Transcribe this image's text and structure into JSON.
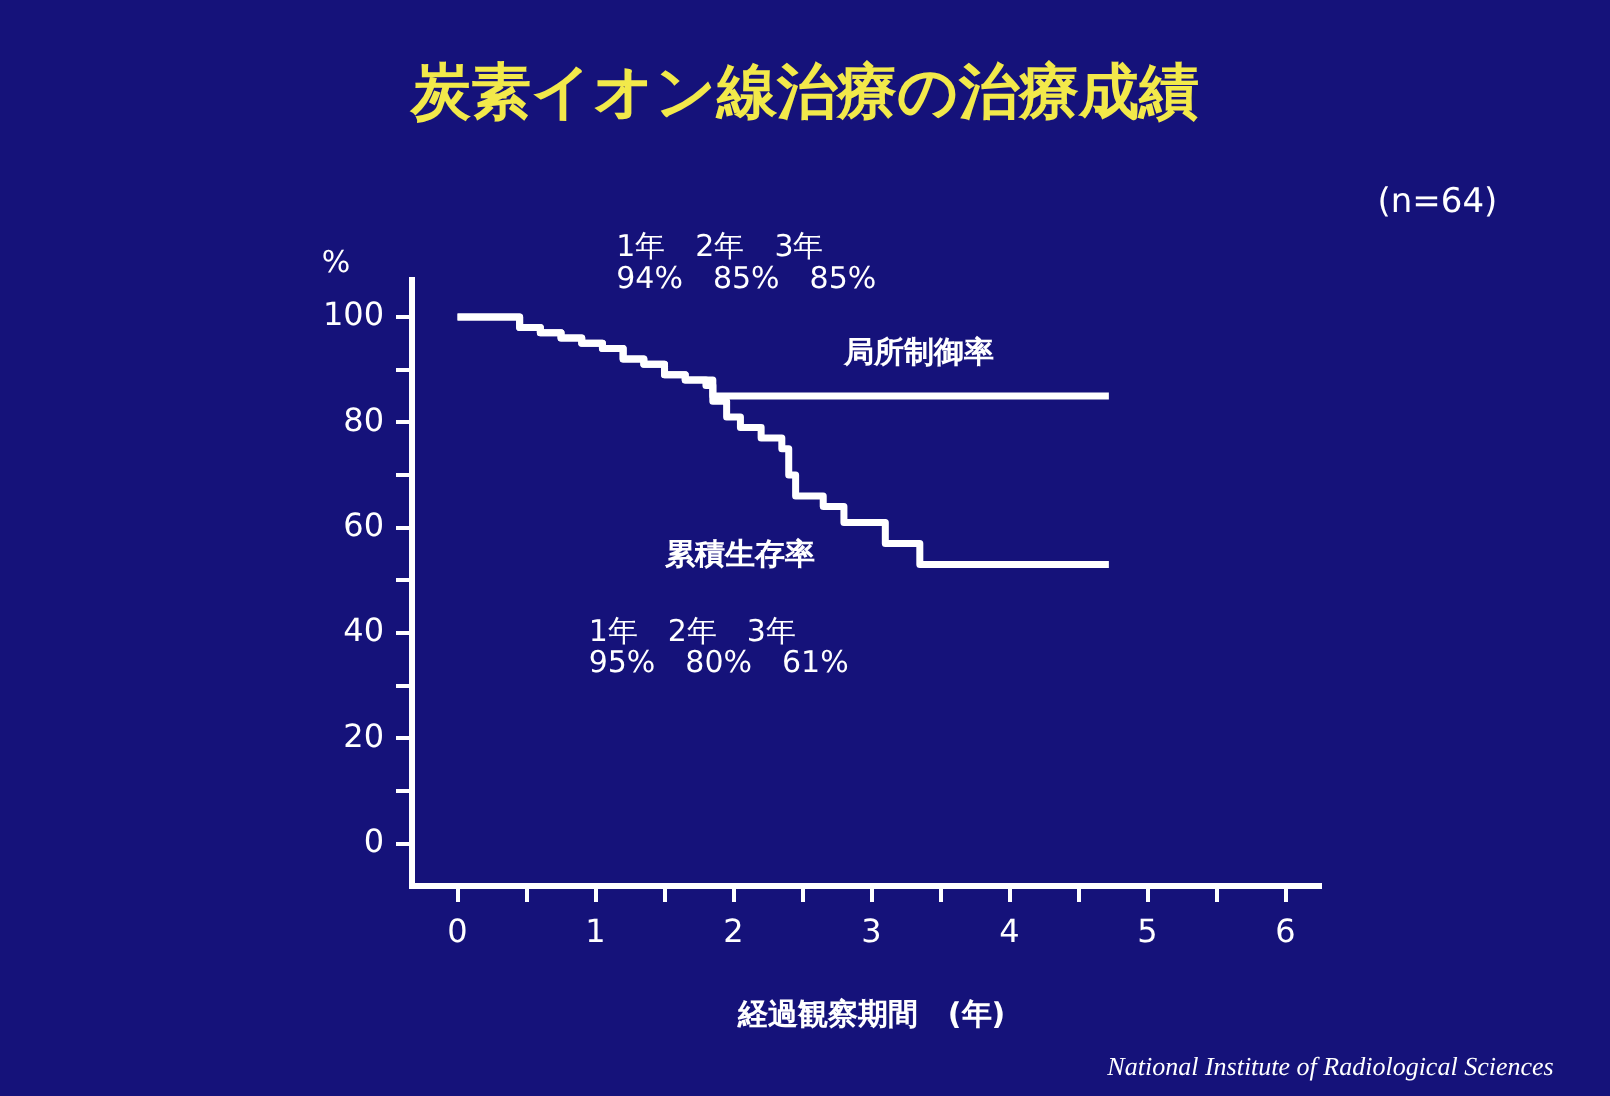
{
  "chart_data": {
    "type": "step",
    "title": "炭素イオン線治療の治療成績",
    "xlabel": "経過観察期間　(年)",
    "ylabel": "%",
    "xlim": [
      -0.33,
      6.25
    ],
    "ylim": [
      -8,
      107
    ],
    "xticks": [
      0,
      {
        "value": 0.5,
        "label": null
      },
      1,
      {
        "value": 1.5,
        "label": null
      },
      2,
      {
        "value": 2.5,
        "label": null
      },
      3,
      {
        "value": 3.5,
        "label": null
      },
      4,
      {
        "value": 4.5,
        "label": null
      },
      5,
      {
        "value": 5.5,
        "label": null
      },
      6
    ],
    "yticks": [
      0,
      {
        "value": 10,
        "label": null
      },
      20,
      {
        "value": 30,
        "label": null
      },
      40,
      {
        "value": 50,
        "label": null
      },
      60,
      {
        "value": 70,
        "label": null
      },
      80,
      {
        "value": 90,
        "label": null
      },
      100
    ],
    "grid": false,
    "legend": false,
    "marker": "none",
    "line_style": "solid",
    "series": [
      {
        "name": "局所制御率",
        "color": "#ffffff",
        "x": [
          0,
          0.45,
          0.6,
          0.75,
          0.9,
          1.05,
          1.2,
          1.35,
          1.5,
          1.65,
          1.85,
          4.72
        ],
        "values": [
          100,
          98,
          97,
          96,
          95,
          94,
          92,
          91,
          89,
          88,
          85,
          85
        ]
      },
      {
        "name": "累積生存率",
        "color": "#ffffff",
        "x": [
          0,
          0.45,
          0.6,
          0.75,
          0.9,
          1.05,
          1.2,
          1.35,
          1.5,
          1.65,
          1.8,
          1.85,
          1.95,
          2.05,
          2.2,
          2.35,
          2.4,
          2.45,
          2.65,
          2.8,
          3.1,
          3.35,
          4.72
        ],
        "values": [
          100,
          98,
          97,
          96,
          95,
          94,
          92,
          91,
          89,
          88,
          87,
          84,
          81,
          79,
          77,
          75,
          70,
          66,
          64,
          61,
          57,
          53,
          53
        ]
      }
    ],
    "annotations": [
      "(n=64)",
      "1年　2年　3年",
      "94%　85%　85%",
      "1年　2年　3年",
      "95%　80%　61%",
      "National Institute of Radiological Sciences"
    ]
  }
}
